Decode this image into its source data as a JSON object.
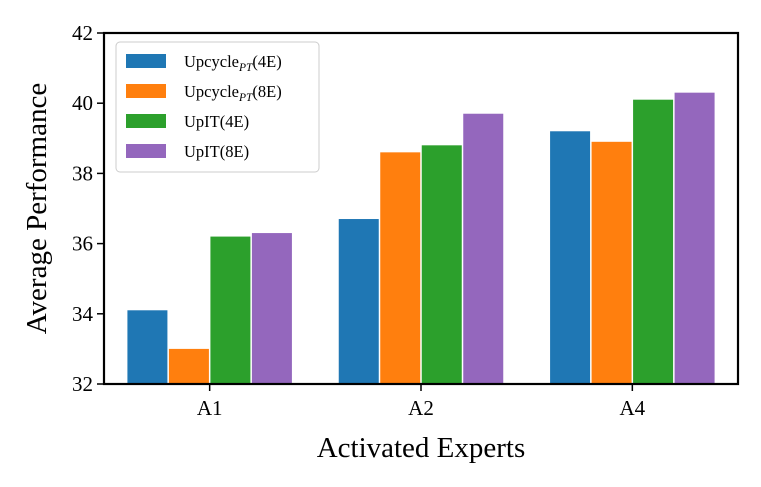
{
  "chart_data": {
    "type": "bar",
    "title": "",
    "xlabel": "Activated Experts",
    "ylabel": "Average Performance",
    "categories": [
      "A1",
      "A2",
      "A4"
    ],
    "ylim": [
      32,
      42
    ],
    "yticks": [
      "32",
      "34",
      "36",
      "38",
      "40",
      "42"
    ],
    "grid": false,
    "legend_position": "top-left",
    "series": [
      {
        "name": "Upcycle",
        "subscript": "PT",
        "suffix": "(4E)",
        "color": "#1f77b4",
        "values": [
          34.1,
          36.7,
          39.2
        ]
      },
      {
        "name": "Upcycle",
        "subscript": "PT",
        "suffix": "(8E)",
        "color": "#ff7f0e",
        "values": [
          33.0,
          38.6,
          38.9
        ]
      },
      {
        "name": "UpIT(4E)",
        "subscript": "",
        "suffix": "",
        "color": "#2ca02c",
        "values": [
          36.2,
          38.8,
          40.1
        ]
      },
      {
        "name": "UpIT(8E)",
        "subscript": "",
        "suffix": "",
        "color": "#9467bd",
        "values": [
          36.3,
          39.7,
          40.3
        ]
      }
    ]
  }
}
